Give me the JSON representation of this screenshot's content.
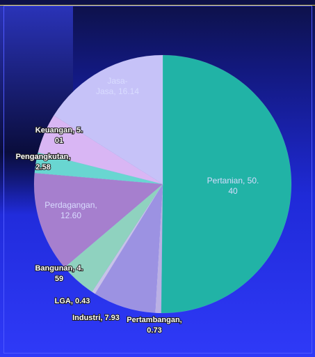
{
  "chart_data": {
    "type": "pie",
    "slices": [
      {
        "label": "Pertanian",
        "value": 50.4,
        "text": [
          "Pertanian, 50.",
          "40"
        ],
        "color": "#21b3a6"
      },
      {
        "label": "Pertambangan",
        "value": 0.73,
        "text": [
          "Pertambangan,",
          "0.73"
        ],
        "color": "#bab0e4"
      },
      {
        "label": "Industri",
        "value": 7.93,
        "text": [
          "Industri, 7.93"
        ],
        "color": "#9c92e2"
      },
      {
        "label": "LGA",
        "value": 0.43,
        "text": [
          "LGA, 0.43"
        ],
        "color": "#c8c2e8"
      },
      {
        "label": "Bangunan",
        "value": 4.59,
        "text": [
          "Bangunan, 4.",
          "59"
        ],
        "color": "#8fd2bf"
      },
      {
        "label": "Perdagangan",
        "value": 12.6,
        "text": [
          "Perdagangan,",
          "12.60"
        ],
        "color": "#a67fce"
      },
      {
        "label": "Pengangkutan",
        "value": 2.58,
        "text": [
          "Pengangkutan,",
          "2.58"
        ],
        "color": "#69d6d1"
      },
      {
        "label": "Keuangan",
        "value": 5.01,
        "text": [
          "Keuangan, 5.",
          "01"
        ],
        "color": "#d9b6f4"
      },
      {
        "label": "Jasa-Jasa",
        "value": 16.14,
        "text": [
          "Jasa-",
          "Jasa, 16.14"
        ],
        "color": "#c6c2f8"
      }
    ]
  }
}
